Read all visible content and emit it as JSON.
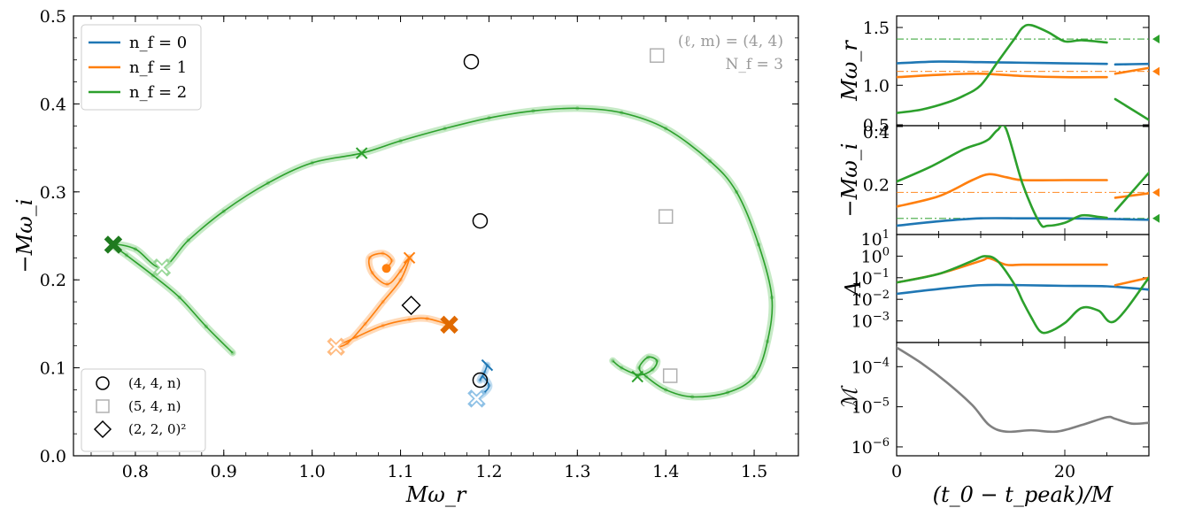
{
  "colors": {
    "nf0": "#1f77b4",
    "nf1": "#ff7f0e",
    "nf2": "#2ca02c",
    "light_green": "#98d898",
    "light_orange": "#ffbb80",
    "light_blue": "#8ec1e6",
    "gray": "#808080",
    "square": "#b0b0b0",
    "dark_green": "#1f7a1f"
  },
  "chart_data": [
    {
      "type": "line",
      "name": "main-panel",
      "xlabel": "Mω_r",
      "ylabel": "−Mω_i",
      "xlim": [
        0.73,
        1.55
      ],
      "ylim": [
        0.0,
        0.5
      ],
      "xticks": [
        "0.8",
        "0.9",
        "1.0",
        "1.1",
        "1.2",
        "1.3",
        "1.4",
        "1.5"
      ],
      "yticks": [
        "0.0",
        "0.1",
        "0.2",
        "0.3",
        "0.4",
        "0.5"
      ],
      "annotation": [
        "(ℓ, m) = (4, 4)",
        "N_f = 3"
      ],
      "legend_top": [
        {
          "label": "n_f = 0",
          "color": "#1f77b4"
        },
        {
          "label": "n_f = 1",
          "color": "#ff7f0e"
        },
        {
          "label": "n_f = 2",
          "color": "#2ca02c"
        }
      ],
      "legend_bottom": [
        {
          "label": "(4, 4, n)",
          "marker": "circle"
        },
        {
          "label": "(5, 4, n)",
          "marker": "square"
        },
        {
          "label": "(2, 2, 0)²",
          "marker": "diamond"
        }
      ],
      "qnm_circles": [
        [
          1.18,
          0.448
        ],
        [
          1.19,
          0.267
        ],
        [
          1.19,
          0.086
        ]
      ],
      "qnm_squares": [
        [
          1.39,
          0.455
        ],
        [
          1.4,
          0.272
        ],
        [
          1.405,
          0.091
        ]
      ],
      "qnm_diamond": [
        [
          1.112,
          0.171
        ]
      ],
      "series": [
        {
          "name": "n_f = 2",
          "color": "#2ca02c",
          "points": [
            [
              0.91,
              0.117
            ],
            [
              0.88,
              0.147
            ],
            [
              0.85,
              0.18
            ],
            [
              0.82,
              0.205
            ],
            [
              0.79,
              0.228
            ],
            [
              0.775,
              0.24
            ],
            [
              0.8,
              0.235
            ],
            [
              0.83,
              0.214
            ],
            [
              0.86,
              0.245
            ],
            [
              0.9,
              0.278
            ],
            [
              0.95,
              0.31
            ],
            [
              1.0,
              0.333
            ],
            [
              1.056,
              0.344
            ],
            [
              1.1,
              0.358
            ],
            [
              1.15,
              0.372
            ],
            [
              1.2,
              0.384
            ],
            [
              1.25,
              0.392
            ],
            [
              1.3,
              0.395
            ],
            [
              1.35,
              0.39
            ],
            [
              1.4,
              0.372
            ],
            [
              1.45,
              0.335
            ],
            [
              1.48,
              0.3
            ],
            [
              1.505,
              0.24
            ],
            [
              1.52,
              0.18
            ],
            [
              1.515,
              0.13
            ],
            [
              1.5,
              0.09
            ],
            [
              1.47,
              0.072
            ],
            [
              1.43,
              0.067
            ],
            [
              1.4,
              0.075
            ],
            [
              1.378,
              0.09
            ],
            [
              1.37,
              0.1
            ],
            [
              1.38,
              0.112
            ],
            [
              1.39,
              0.108
            ],
            [
              1.385,
              0.098
            ],
            [
              1.37,
              0.092
            ],
            [
              1.35,
              0.1
            ],
            [
              1.34,
              0.108
            ]
          ]
        },
        {
          "name": "n_f = 1",
          "color": "#ff7f0e",
          "points": [
            [
              1.084,
              0.213
            ],
            [
              1.09,
              0.222
            ],
            [
              1.08,
              0.23
            ],
            [
              1.065,
              0.225
            ],
            [
              1.068,
              0.208
            ],
            [
              1.085,
              0.195
            ],
            [
              1.1,
              0.21
            ],
            [
              1.11,
              0.225
            ],
            [
              1.1,
              0.2
            ],
            [
              1.08,
              0.175
            ],
            [
              1.06,
              0.15
            ],
            [
              1.04,
              0.128
            ],
            [
              1.027,
              0.124
            ],
            [
              1.05,
              0.135
            ],
            [
              1.08,
              0.148
            ],
            [
              1.11,
              0.155
            ],
            [
              1.13,
              0.156
            ],
            [
              1.155,
              0.149
            ]
          ]
        },
        {
          "name": "n_f = 0",
          "color": "#1f77b4",
          "points": [
            [
              1.186,
              0.065
            ],
            [
              1.195,
              0.072
            ],
            [
              1.2,
              0.08
            ],
            [
              1.193,
              0.09
            ],
            [
              1.19,
              0.086
            ],
            [
              1.195,
              0.095
            ],
            [
              1.198,
              0.103
            ]
          ]
        }
      ]
    },
    {
      "type": "line",
      "name": "Mω_r-panel",
      "ylabel": "Mω_r",
      "xlim": [
        0,
        30
      ],
      "ylim": [
        0.65,
        1.6
      ],
      "yticks": [
        "0.5",
        "1.0",
        "1.5"
      ],
      "series": [
        {
          "name": "n_f = 0",
          "color": "#1f77b4",
          "x": [
            0,
            5,
            10,
            15,
            20,
            25,
            26,
            30
          ],
          "y": [
            1.19,
            1.205,
            1.2,
            1.195,
            1.19,
            1.185,
            1.18,
            1.185
          ]
        },
        {
          "name": "n_f = 1",
          "color": "#ff7f0e",
          "x": [
            0,
            5,
            10,
            15,
            20,
            25,
            26,
            30
          ],
          "y": [
            1.07,
            1.09,
            1.1,
            1.08,
            1.07,
            1.07,
            1.1,
            1.15
          ]
        },
        {
          "name": "n_f = 2",
          "color": "#2ca02c",
          "x": [
            0,
            3,
            6,
            8,
            10,
            12,
            14,
            15,
            16,
            18,
            20,
            22,
            25,
            26,
            30
          ],
          "y": [
            0.76,
            0.79,
            0.85,
            0.91,
            1.0,
            1.2,
            1.4,
            1.5,
            1.52,
            1.46,
            1.38,
            1.39,
            1.37,
            0.88,
            0.7
          ]
        }
      ],
      "ref_lines": [
        {
          "y": 1.4,
          "color": "#2ca02c"
        },
        {
          "y": 1.12,
          "color": "#ff7f0e"
        }
      ]
    },
    {
      "type": "line",
      "name": "−Mω_i-panel",
      "ylabel": "−Mω_i",
      "xlim": [
        0,
        30
      ],
      "ylim": [
        0.03,
        0.4
      ],
      "yticks": [
        "0.2",
        "0.4"
      ],
      "series": [
        {
          "name": "n_f = 0",
          "color": "#1f77b4",
          "x": [
            0,
            5,
            10,
            15,
            20,
            25,
            30
          ],
          "y": [
            0.06,
            0.075,
            0.085,
            0.085,
            0.085,
            0.083,
            0.08
          ]
        },
        {
          "name": "n_f = 1",
          "color": "#ff7f0e",
          "x": [
            0,
            5,
            9,
            11,
            13,
            15,
            20,
            25,
            26,
            30
          ],
          "y": [
            0.125,
            0.16,
            0.215,
            0.235,
            0.225,
            0.215,
            0.215,
            0.215,
            0.155,
            0.17
          ]
        },
        {
          "name": "n_f = 2",
          "color": "#2ca02c",
          "x": [
            0,
            4,
            8,
            10,
            11,
            12,
            13,
            15,
            17,
            18,
            20,
            22,
            24,
            25,
            26,
            30
          ],
          "y": [
            0.21,
            0.26,
            0.32,
            0.34,
            0.355,
            0.385,
            0.39,
            0.2,
            0.07,
            0.06,
            0.07,
            0.095,
            0.09,
            0.087,
            0.11,
            0.24
          ]
        }
      ],
      "ref_lines": [
        {
          "y": 0.173,
          "color": "#ff7f0e"
        },
        {
          "y": 0.085,
          "color": "#2ca02c"
        }
      ]
    },
    {
      "type": "line",
      "name": "A-panel",
      "ylabel": "A",
      "scale": "log",
      "xlim": [
        0,
        30
      ],
      "ylim": [
        0.0001,
        10
      ],
      "yticks": [
        "10^{-3}",
        "10^{-2}",
        "10^{-1}",
        "10^{0}",
        "10^{1}"
      ],
      "series": [
        {
          "name": "n_f = 0",
          "color": "#1f77b4",
          "x": [
            0,
            5,
            10,
            15,
            20,
            25,
            30
          ],
          "y": [
            0.018,
            0.03,
            0.045,
            0.045,
            0.042,
            0.04,
            0.028
          ]
        },
        {
          "name": "n_f = 1",
          "color": "#ff7f0e",
          "x": [
            0,
            5,
            10,
            11,
            13,
            15,
            20,
            25,
            26,
            30
          ],
          "y": [
            0.06,
            0.15,
            0.6,
            0.8,
            0.4,
            0.4,
            0.4,
            0.4,
            0.045,
            0.1
          ]
        },
        {
          "name": "n_f = 2",
          "color": "#2ca02c",
          "x": [
            0,
            5,
            9,
            10.5,
            12,
            14,
            15,
            16,
            17,
            18,
            20,
            22,
            24,
            26,
            30
          ],
          "y": [
            0.06,
            0.15,
            0.6,
            1.0,
            0.6,
            0.05,
            0.008,
            0.0015,
            0.00035,
            0.0003,
            0.0008,
            0.004,
            0.003,
            0.001,
            0.1
          ]
        }
      ]
    },
    {
      "type": "line",
      "name": "M-panel",
      "ylabel": "ℳ",
      "scale": "log",
      "xlim": [
        0,
        30
      ],
      "ylim": [
        6e-07,
        0.0004
      ],
      "xticks": [
        "0",
        "20"
      ],
      "xlabel": "(t_0 − t_peak)/M",
      "yticks": [
        "10^{-6}",
        "10^{-5}",
        "10^{-4}"
      ],
      "series": [
        {
          "name": "",
          "color": "#808080",
          "x": [
            0,
            3,
            6,
            9,
            11,
            13,
            16,
            19,
            22,
            25,
            26,
            28,
            30
          ],
          "y": [
            0.0003,
            0.00012,
            4e-05,
            1.1e-05,
            3.5e-06,
            2.4e-06,
            2.6e-06,
            2.4e-06,
            3.5e-06,
            5.5e-06,
            5e-06,
            3.8e-06,
            4e-06
          ]
        }
      ]
    }
  ]
}
